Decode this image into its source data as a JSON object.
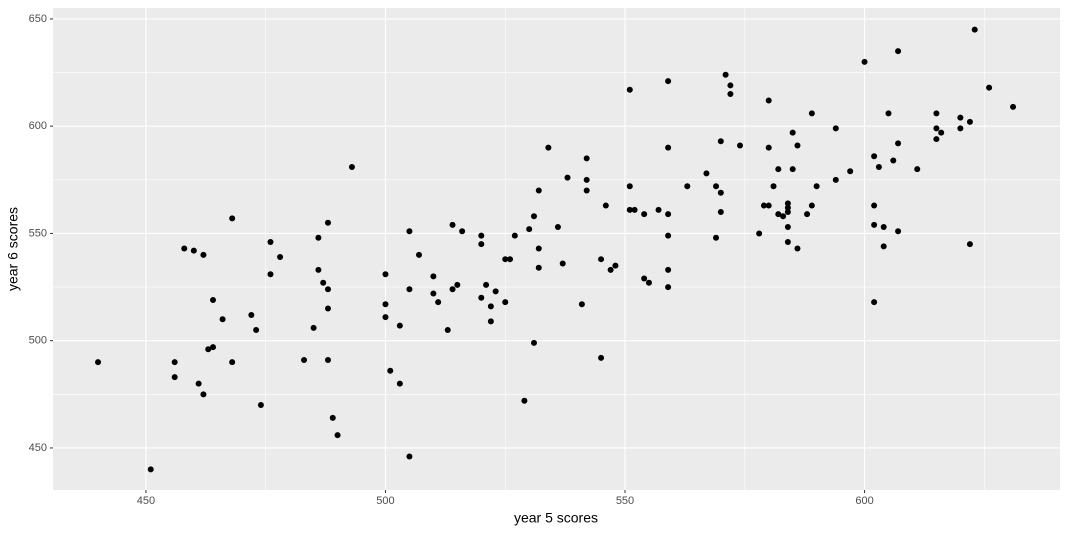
{
  "chart_data": {
    "type": "scatter",
    "xlabel": "year 5 scores",
    "ylabel": "year 6 scores",
    "xlim": [
      430.6,
      640.8
    ],
    "ylim": [
      430.4,
      655.1
    ],
    "xticks": [
      450,
      500,
      550,
      600
    ],
    "yticks": [
      450,
      500,
      550,
      600,
      650
    ],
    "x_minor_ticks": [
      475,
      525,
      575,
      625
    ],
    "y_minor_ticks": [
      475,
      525,
      575,
      625
    ],
    "grid": true,
    "color": "#000000",
    "background": "#EBEBEB",
    "x": [
      440,
      451,
      456,
      456,
      458,
      460,
      462,
      461,
      462,
      464,
      463,
      464,
      466,
      468,
      468,
      472,
      473,
      474,
      476,
      476,
      478,
      483,
      485,
      486,
      486,
      487,
      488,
      488,
      488,
      488,
      489,
      490,
      493,
      500,
      500,
      500,
      501,
      503,
      503,
      505,
      505,
      505,
      507,
      510,
      510,
      511,
      513,
      514,
      514,
      515,
      516,
      520,
      520,
      520,
      521,
      522,
      522,
      523,
      525,
      525,
      526,
      527,
      529,
      530,
      531,
      531,
      532,
      532,
      532,
      534,
      536,
      537,
      538,
      541,
      542,
      542,
      542,
      545,
      545,
      546,
      547,
      548,
      551,
      551,
      551,
      552,
      554,
      554,
      555,
      557,
      559,
      559,
      559,
      559,
      559,
      559,
      563,
      567,
      569,
      569,
      570,
      570,
      570,
      571,
      572,
      572,
      574,
      578,
      579,
      580,
      580,
      580,
      581,
      582,
      582,
      583,
      584,
      584,
      584,
      584,
      584,
      585,
      585,
      586,
      586,
      588,
      589,
      589,
      590,
      594,
      594,
      597,
      600,
      602,
      602,
      602,
      602,
      603,
      604,
      604,
      605,
      606,
      607,
      607,
      607,
      611,
      615,
      615,
      615,
      616,
      620,
      620,
      622,
      622,
      623,
      626,
      631
    ],
    "values": [
      490,
      440,
      490,
      483,
      543,
      542,
      540,
      480,
      475,
      519,
      496,
      497,
      510,
      557,
      490,
      512,
      505,
      470,
      546,
      531,
      539,
      491,
      506,
      548,
      533,
      527,
      524,
      555,
      515,
      491,
      464,
      456,
      581,
      531,
      517,
      511,
      486,
      480,
      507,
      551,
      524,
      446,
      540,
      530,
      522,
      518,
      505,
      554,
      524,
      526,
      551,
      549,
      545,
      520,
      526,
      516,
      509,
      523,
      538,
      518,
      538,
      549,
      472,
      552,
      558,
      499,
      570,
      543,
      534,
      590,
      553,
      536,
      576,
      517,
      585,
      575,
      570,
      538,
      492,
      563,
      533,
      535,
      617,
      572,
      561,
      561,
      529,
      559,
      527,
      561,
      621,
      590,
      559,
      549,
      533,
      525,
      572,
      578,
      572,
      548,
      569,
      560,
      593,
      624,
      619,
      615,
      591,
      550,
      563,
      563,
      612,
      590,
      572,
      580,
      559,
      558,
      546,
      564,
      562,
      560,
      553,
      597,
      580,
      591,
      543,
      559,
      563,
      606,
      572,
      599,
      575,
      579,
      630,
      586,
      563,
      554,
      518,
      581,
      553,
      544,
      606,
      584,
      635,
      592,
      551,
      580,
      606,
      599,
      594,
      597,
      604,
      599,
      602,
      545,
      645,
      618,
      609
    ]
  }
}
